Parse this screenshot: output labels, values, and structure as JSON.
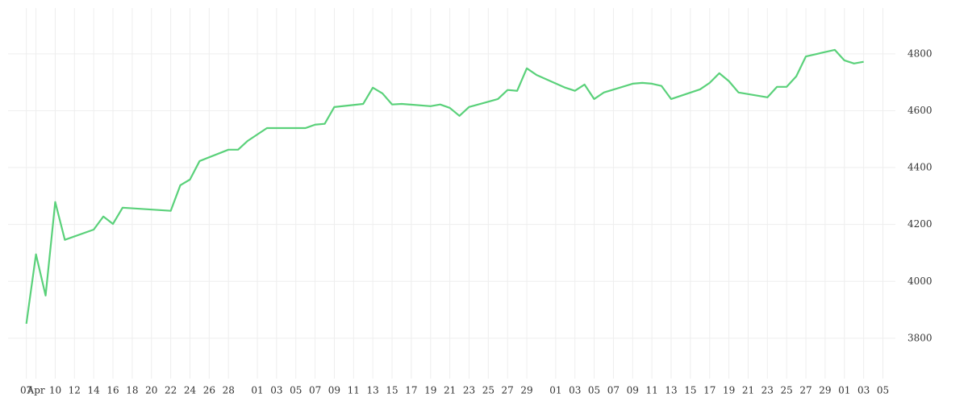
{
  "chart_data": {
    "type": "line",
    "x": [
      7,
      8,
      9,
      10,
      11,
      14,
      15,
      16,
      17,
      22,
      23,
      24,
      25,
      28,
      29,
      30,
      32,
      36,
      37,
      38,
      39,
      42,
      43,
      44,
      45,
      46,
      49,
      50,
      51,
      52,
      53,
      56,
      57,
      58,
      59,
      60,
      63,
      64,
      65,
      66,
      67,
      70,
      71,
      72,
      73,
      74,
      77,
      78,
      79,
      80,
      81,
      84,
      85,
      86,
      87,
      88,
      91,
      92,
      93,
      94
    ],
    "series": [
      {
        "color": "#5ad17a",
        "values": [
          3851,
          4095,
          3950,
          4279,
          4146,
          4182,
          4228,
          4202,
          4259,
          4248,
          4338,
          4358,
          4423,
          4463,
          4463,
          4494,
          4539,
          4539,
          4551,
          4554,
          4613,
          4624,
          4681,
          4661,
          4622,
          4624,
          4616,
          4622,
          4610,
          4582,
          4613,
          4641,
          4673,
          4670,
          4749,
          4726,
          4681,
          4670,
          4692,
          4641,
          4664,
          4695,
          4698,
          4695,
          4687,
          4641,
          4675,
          4698,
          4732,
          4704,
          4664,
          4647,
          4684,
          4684,
          4721,
          4791,
          4814,
          4777,
          4766,
          4772
        ]
      }
    ],
    "xlim": [
      5.1,
      97.3
    ],
    "xticks": [
      {
        "value": 7,
        "label": "07"
      },
      {
        "value": 8,
        "label": "Apr"
      },
      10,
      12,
      14,
      16,
      18,
      20,
      22,
      24,
      26,
      28,
      {
        "value": 31,
        "label": "01"
      },
      {
        "value": 33,
        "label": "03"
      },
      {
        "value": 35,
        "label": "05"
      },
      {
        "value": 37,
        "label": "07"
      },
      {
        "value": 39,
        "label": "09"
      },
      {
        "value": 41,
        "label": "11"
      },
      {
        "value": 43,
        "label": "13"
      },
      {
        "value": 45,
        "label": "15"
      },
      {
        "value": 47,
        "label": "17"
      },
      {
        "value": 49,
        "label": "19"
      },
      {
        "value": 51,
        "label": "21"
      },
      {
        "value": 53,
        "label": "23"
      },
      {
        "value": 55,
        "label": "25"
      },
      {
        "value": 57,
        "label": "27"
      },
      {
        "value": 59,
        "label": "29"
      },
      {
        "value": 62,
        "label": "01"
      },
      {
        "value": 64,
        "label": "03"
      },
      {
        "value": 66,
        "label": "05"
      },
      {
        "value": 68,
        "label": "07"
      },
      {
        "value": 70,
        "label": "09"
      },
      {
        "value": 72,
        "label": "11"
      },
      {
        "value": 74,
        "label": "13"
      },
      {
        "value": 76,
        "label": "15"
      },
      {
        "value": 78,
        "label": "17"
      },
      {
        "value": 80,
        "label": "19"
      },
      {
        "value": 82,
        "label": "21"
      },
      {
        "value": 84,
        "label": "23"
      },
      {
        "value": 86,
        "label": "25"
      },
      {
        "value": 88,
        "label": "27"
      },
      {
        "value": 90,
        "label": "29"
      },
      {
        "value": 92,
        "label": "01"
      },
      {
        "value": 94,
        "label": "03"
      },
      {
        "value": 96,
        "label": "05"
      }
    ],
    "ylim": [
      3658,
      4961
    ],
    "yticks": [
      3800,
      4000,
      4200,
      4400,
      4600,
      4800
    ],
    "grid": true
  }
}
